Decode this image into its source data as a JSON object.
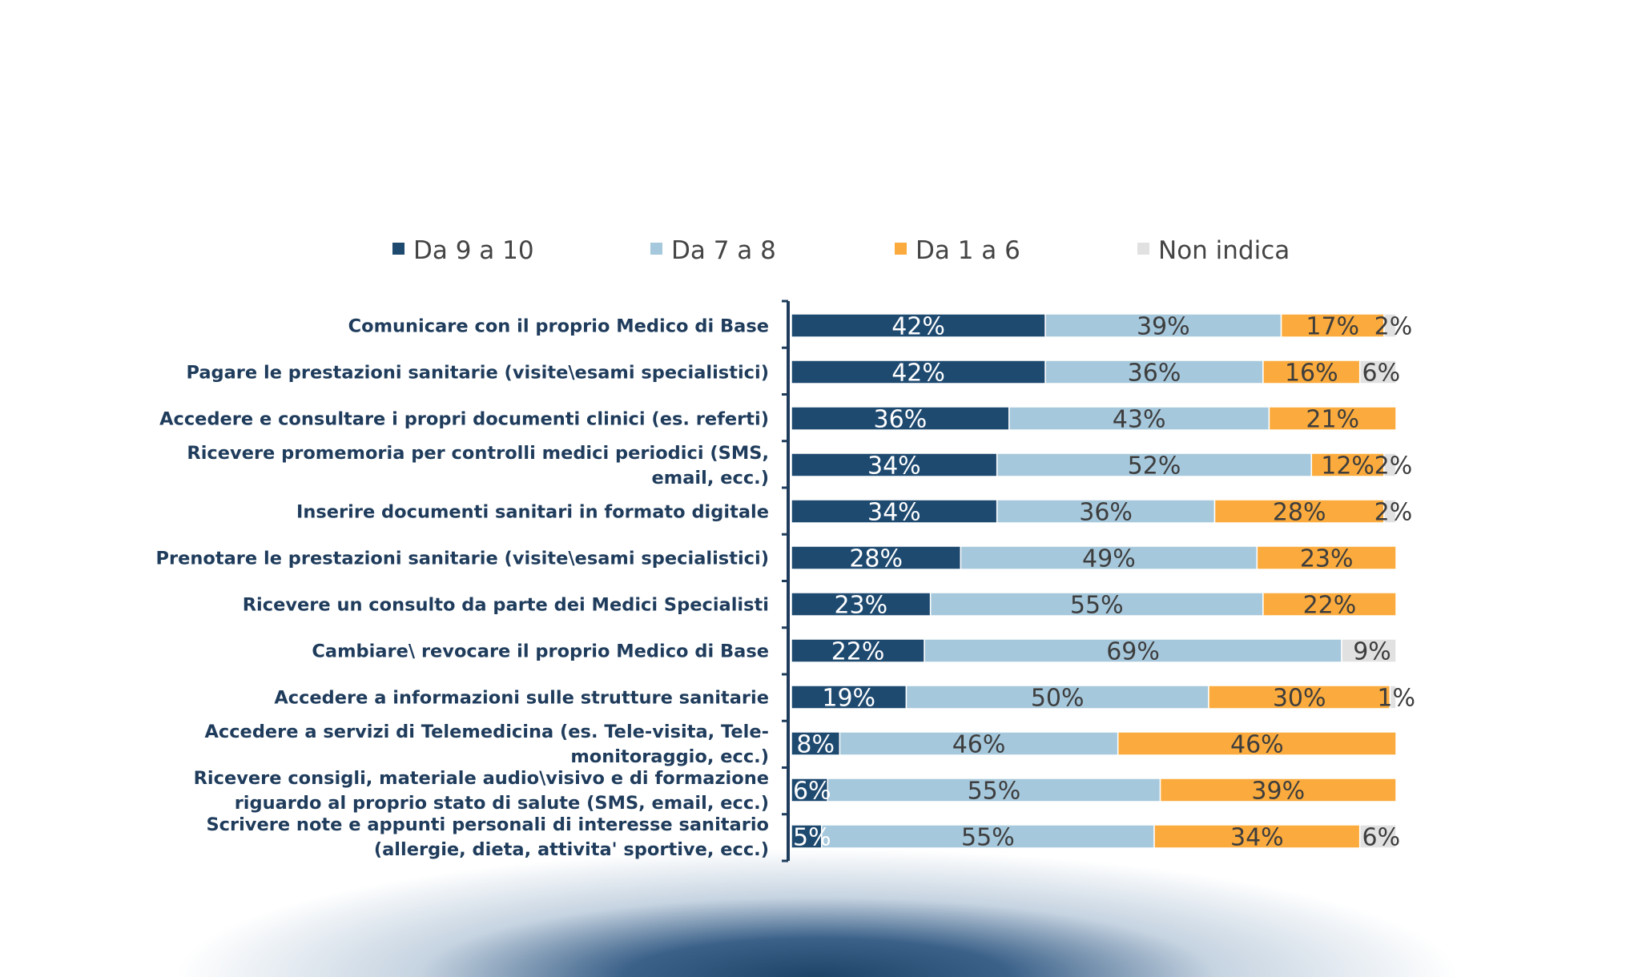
{
  "chart_data": {
    "type": "bar",
    "orientation": "horizontal",
    "stacked": true,
    "legend_position": "top",
    "grid": false,
    "xlim": [
      0,
      100
    ],
    "categories": [
      [
        "Comunicare con il proprio Medico di Base"
      ],
      [
        "Pagare le prestazioni sanitarie (visite\\esami specialistici)"
      ],
      [
        "Accedere e consultare i propri documenti clinici (es. referti)"
      ],
      [
        "Ricevere promemoria per controlli medici periodici (SMS,",
        "email, ecc.)"
      ],
      [
        "Inserire documenti sanitari in formato digitale"
      ],
      [
        "Prenotare le prestazioni sanitarie (visite\\esami specialistici)"
      ],
      [
        "Ricevere un consulto da parte dei Medici Specialisti"
      ],
      [
        "Cambiare\\ revocare il proprio Medico di Base"
      ],
      [
        "Accedere a informazioni sulle strutture sanitarie"
      ],
      [
        "Accedere a servizi di Telemedicina (es. Tele-visita, Tele-",
        "monitoraggio, ecc.)"
      ],
      [
        "Ricevere consigli, materiale audio\\visivo e di formazione",
        "riguardo al proprio stato di salute (SMS, email, ecc.)"
      ],
      [
        "Scrivere note e appunti personali di interesse sanitario",
        "(allergie, dieta, attivita' sportive, ecc.)"
      ]
    ],
    "series": [
      {
        "name": "Da 9 a 10",
        "color": "#1f4a70",
        "label_color": "#ffffff",
        "values": [
          42,
          42,
          36,
          34,
          34,
          28,
          23,
          22,
          19,
          8,
          6,
          5
        ]
      },
      {
        "name": "Da 7 a 8",
        "color": "#a6c8dc",
        "label_color": "#3d3d3d",
        "values": [
          39,
          36,
          43,
          52,
          36,
          49,
          55,
          69,
          50,
          46,
          55,
          55
        ]
      },
      {
        "name": "Da 1 a 6",
        "color": "#fbab3d",
        "label_color": "#3d3d3d",
        "values": [
          17,
          16,
          21,
          12,
          28,
          23,
          22,
          0,
          30,
          46,
          39,
          34
        ]
      },
      {
        "name": "Non indica",
        "color": "#e1e1e1",
        "label_color": "#3d3d3d",
        "values": [
          2,
          6,
          0,
          2,
          2,
          0,
          0,
          9,
          1,
          0,
          0,
          6
        ]
      }
    ]
  }
}
